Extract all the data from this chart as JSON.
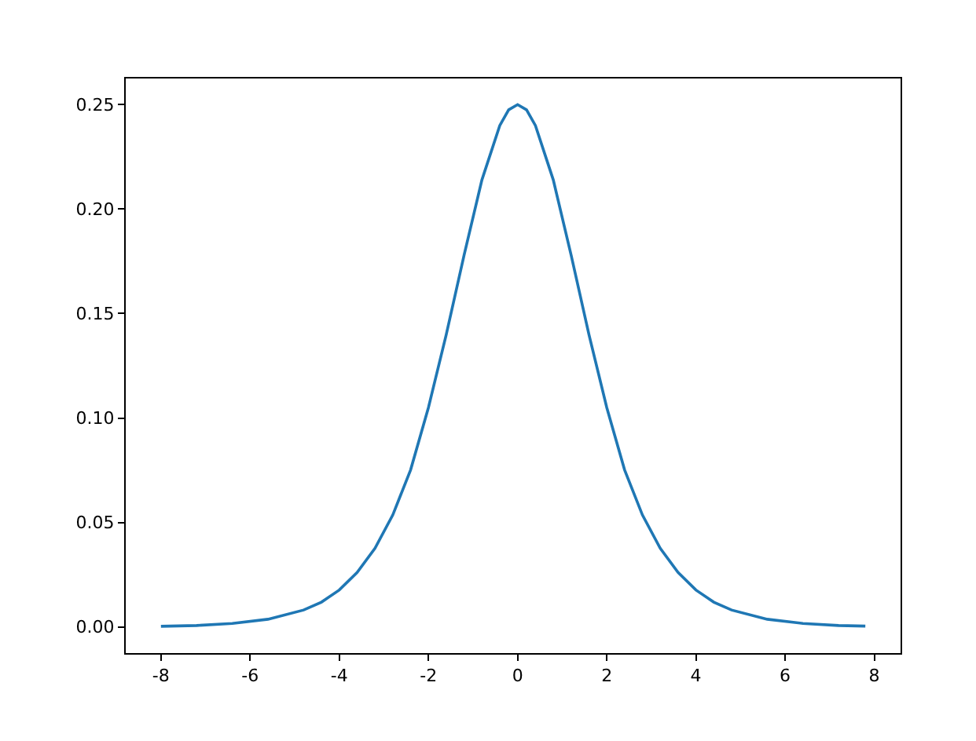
{
  "chart_data": {
    "type": "line",
    "x": [
      -8,
      -7.2,
      -6.4,
      -5.6,
      -4.8,
      -4.4,
      -4,
      -3.6,
      -3.2,
      -2.8,
      -2.4,
      -2,
      -1.6,
      -1.2,
      -0.8,
      -0.4,
      -0.2,
      0,
      0.2,
      0.4,
      0.8,
      1.2,
      1.6,
      2,
      2.4,
      2.8,
      3.2,
      3.6,
      4,
      4.4,
      4.8,
      5.6,
      6.4,
      7.2,
      7.8
    ],
    "series": [
      {
        "color": "#1f77b4",
        "values": [
          0.0003,
          0.0007,
          0.0017,
          0.0037,
          0.0081,
          0.0119,
          0.0177,
          0.0261,
          0.0376,
          0.0536,
          0.0752,
          0.105,
          0.14,
          0.178,
          0.214,
          0.24,
          0.2475,
          0.25,
          0.2475,
          0.24,
          0.214,
          0.178,
          0.14,
          0.105,
          0.0752,
          0.0536,
          0.0376,
          0.0261,
          0.0177,
          0.0119,
          0.0081,
          0.0037,
          0.0017,
          0.0007,
          0.0004
        ]
      }
    ],
    "xlim": [
      -8.79,
      8.59
    ],
    "xticks": [
      -8,
      -6,
      -4,
      -2,
      0,
      2,
      4,
      6,
      8
    ],
    "ylim": [
      -0.0125,
      0.2625
    ],
    "yticks": [
      {
        "value": 0,
        "label": "0.00"
      },
      0.05,
      {
        "value": 0.1,
        "label": "0.10"
      },
      0.15,
      {
        "value": 0.2,
        "label": "0.20"
      },
      0.25
    ],
    "marker": "none",
    "line_style": "solid"
  }
}
